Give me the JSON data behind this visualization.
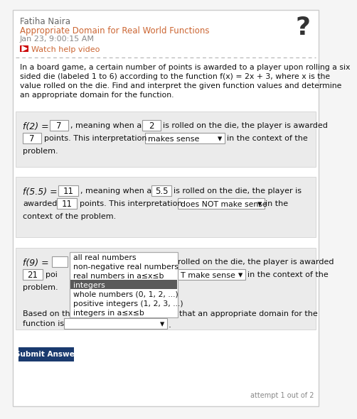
{
  "name": "Fatiha Naira",
  "topic": "Appropriate Domain for Real World Functions",
  "date": "Jan 23, 9:00:15 AM",
  "watch_text": "Watch help video",
  "problem_lines": [
    "In a board game, a certain number of points is awarded to a player upon rolling a six",
    "sided die (labeled 1 to 6) according to the function f(x) = 2x + 3, where x is the",
    "value rolled on the die. Find and interpret the given function values and determine",
    "an appropriate domain for the function."
  ],
  "dropdown_items": [
    "all real numbers",
    "non-negative real numbers",
    "real numbers in a≤x≤b",
    "integers",
    "whole numbers (0, 1, 2, ...)",
    "positive integers (1, 2, 3, ...)",
    "integers in a≤x≤b"
  ],
  "highlighted_item": "integers",
  "submit_text": "Submit Answer",
  "attempt_text": "attempt 1 out of 2",
  "bg_color": "#f5f5f5",
  "white": "#ffffff",
  "panel_color": "#e8e8e8",
  "highlight_color": "#5a5a5a",
  "name_color": "#666666",
  "topic_color": "#cc6633",
  "date_color": "#888888",
  "text_color": "#111111",
  "box_border": "#999999",
  "panel_border": "#cccccc",
  "submit_bg": "#1a3a6e",
  "submit_text_color": "#ffffff",
  "youtube_red": "#cc0000",
  "qmark_color": "#333333",
  "gray_text": "#888888"
}
